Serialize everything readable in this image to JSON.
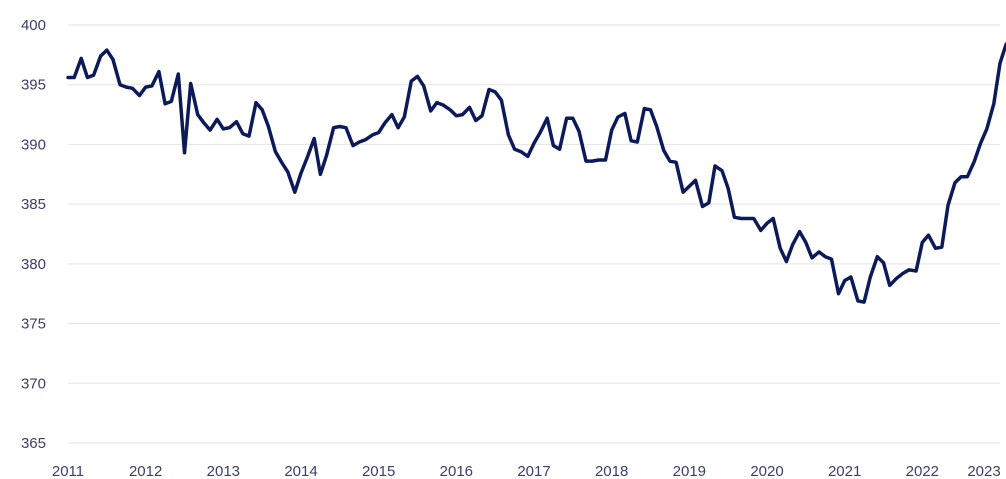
{
  "chart_data": {
    "type": "line",
    "title": "",
    "xlabel": "",
    "ylabel": "",
    "xlim": [
      2011,
      2023
    ],
    "ylim": [
      365,
      400
    ],
    "grid": true,
    "x_ticks": [
      "2011",
      "2012",
      "2013",
      "2014",
      "2015",
      "2016",
      "2017",
      "2018",
      "2019",
      "2020",
      "2021",
      "2022",
      "2023"
    ],
    "y_ticks": [
      "400",
      "395",
      "390",
      "385",
      "380",
      "375",
      "370",
      "365"
    ],
    "colors": {
      "line": "#0d1a5a",
      "grid": "#e3e3e3",
      "text": "#3a3f6b"
    },
    "series": [
      {
        "values": [
          [
            2011.0,
            395.6
          ],
          [
            2011.08,
            395.6
          ],
          [
            2011.17,
            397.2
          ],
          [
            2011.25,
            395.6
          ],
          [
            2011.33,
            395.8
          ],
          [
            2011.42,
            397.4
          ],
          [
            2011.5,
            397.9
          ],
          [
            2011.58,
            397.1
          ],
          [
            2011.67,
            395.0
          ],
          [
            2011.75,
            394.8
          ],
          [
            2011.83,
            394.7
          ],
          [
            2011.92,
            394.1
          ],
          [
            2012.0,
            394.8
          ],
          [
            2012.08,
            394.9
          ],
          [
            2012.17,
            396.1
          ],
          [
            2012.25,
            393.4
          ],
          [
            2012.33,
            393.6
          ],
          [
            2012.42,
            395.9
          ],
          [
            2012.5,
            389.3
          ],
          [
            2012.58,
            395.1
          ],
          [
            2012.67,
            392.5
          ],
          [
            2012.75,
            391.8
          ],
          [
            2012.83,
            391.2
          ],
          [
            2012.92,
            392.1
          ],
          [
            2013.0,
            391.3
          ],
          [
            2013.08,
            391.4
          ],
          [
            2013.17,
            391.9
          ],
          [
            2013.25,
            390.9
          ],
          [
            2013.33,
            390.7
          ],
          [
            2013.42,
            393.5
          ],
          [
            2013.5,
            392.9
          ],
          [
            2013.58,
            391.5
          ],
          [
            2013.67,
            389.4
          ],
          [
            2013.75,
            388.5
          ],
          [
            2013.83,
            387.7
          ],
          [
            2013.92,
            386.0
          ],
          [
            2014.0,
            387.6
          ],
          [
            2014.08,
            388.9
          ],
          [
            2014.17,
            390.5
          ],
          [
            2014.25,
            387.5
          ],
          [
            2014.33,
            389.1
          ],
          [
            2014.42,
            391.4
          ],
          [
            2014.5,
            391.5
          ],
          [
            2014.58,
            391.4
          ],
          [
            2014.67,
            389.9
          ],
          [
            2014.75,
            390.2
          ],
          [
            2014.83,
            390.4
          ],
          [
            2014.92,
            390.8
          ],
          [
            2015.0,
            391.0
          ],
          [
            2015.08,
            391.8
          ],
          [
            2015.17,
            392.5
          ],
          [
            2015.25,
            391.4
          ],
          [
            2015.33,
            392.3
          ],
          [
            2015.42,
            395.3
          ],
          [
            2015.5,
            395.7
          ],
          [
            2015.58,
            394.9
          ],
          [
            2015.67,
            392.8
          ],
          [
            2015.75,
            393.5
          ],
          [
            2015.83,
            393.3
          ],
          [
            2015.92,
            392.9
          ],
          [
            2016.0,
            392.4
          ],
          [
            2016.08,
            392.5
          ],
          [
            2016.17,
            393.1
          ],
          [
            2016.25,
            392.0
          ],
          [
            2016.33,
            392.4
          ],
          [
            2016.42,
            394.6
          ],
          [
            2016.5,
            394.4
          ],
          [
            2016.58,
            393.7
          ],
          [
            2016.67,
            390.8
          ],
          [
            2016.75,
            389.6
          ],
          [
            2016.83,
            389.4
          ],
          [
            2016.92,
            389.0
          ],
          [
            2017.0,
            390.1
          ],
          [
            2017.08,
            391.0
          ],
          [
            2017.17,
            392.2
          ],
          [
            2017.25,
            389.9
          ],
          [
            2017.33,
            389.6
          ],
          [
            2017.42,
            392.2
          ],
          [
            2017.5,
            392.2
          ],
          [
            2017.58,
            391.1
          ],
          [
            2017.67,
            388.6
          ],
          [
            2017.75,
            388.6
          ],
          [
            2017.83,
            388.7
          ],
          [
            2017.92,
            388.7
          ],
          [
            2018.0,
            391.2
          ],
          [
            2018.08,
            392.3
          ],
          [
            2018.17,
            392.6
          ],
          [
            2018.25,
            390.3
          ],
          [
            2018.33,
            390.2
          ],
          [
            2018.42,
            393.0
          ],
          [
            2018.5,
            392.9
          ],
          [
            2018.58,
            391.5
          ],
          [
            2018.67,
            389.5
          ],
          [
            2018.75,
            388.6
          ],
          [
            2018.83,
            388.5
          ],
          [
            2018.92,
            386.0
          ],
          [
            2019.0,
            386.5
          ],
          [
            2019.08,
            387.0
          ],
          [
            2019.17,
            384.8
          ],
          [
            2019.25,
            385.1
          ],
          [
            2019.33,
            388.2
          ],
          [
            2019.42,
            387.8
          ],
          [
            2019.5,
            386.3
          ],
          [
            2019.58,
            383.9
          ],
          [
            2019.67,
            383.8
          ],
          [
            2019.75,
            383.8
          ],
          [
            2019.83,
            383.8
          ],
          [
            2019.92,
            382.8
          ],
          [
            2020.0,
            383.4
          ],
          [
            2020.08,
            383.8
          ],
          [
            2020.17,
            381.3
          ],
          [
            2020.25,
            380.2
          ],
          [
            2020.33,
            381.6
          ],
          [
            2020.42,
            382.7
          ],
          [
            2020.5,
            381.8
          ],
          [
            2020.58,
            380.5
          ],
          [
            2020.67,
            381.0
          ],
          [
            2020.75,
            380.6
          ],
          [
            2020.83,
            380.4
          ],
          [
            2020.92,
            377.5
          ],
          [
            2021.0,
            378.6
          ],
          [
            2021.08,
            378.9
          ],
          [
            2021.17,
            376.9
          ],
          [
            2021.25,
            376.8
          ],
          [
            2021.33,
            378.9
          ],
          [
            2021.42,
            380.6
          ],
          [
            2021.5,
            380.1
          ],
          [
            2021.58,
            378.2
          ],
          [
            2021.67,
            378.8
          ],
          [
            2021.75,
            379.2
          ],
          [
            2021.83,
            379.5
          ],
          [
            2021.92,
            379.4
          ],
          [
            2022.0,
            381.8
          ],
          [
            2022.08,
            382.4
          ],
          [
            2022.17,
            381.3
          ],
          [
            2022.25,
            381.4
          ],
          [
            2022.33,
            384.9
          ],
          [
            2022.42,
            386.8
          ],
          [
            2022.5,
            387.3
          ],
          [
            2022.58,
            387.3
          ],
          [
            2022.67,
            388.6
          ],
          [
            2022.75,
            390.1
          ],
          [
            2022.83,
            391.3
          ],
          [
            2022.92,
            393.4
          ],
          [
            2023.0,
            396.8
          ],
          [
            2023.08,
            398.4
          ]
        ]
      }
    ]
  }
}
